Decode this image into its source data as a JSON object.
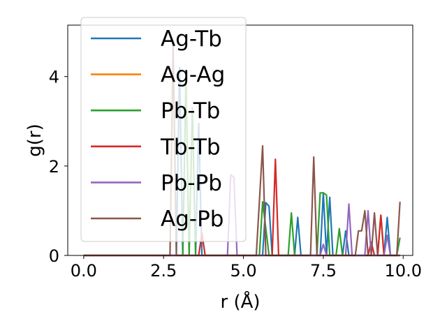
{
  "chart_data": {
    "type": "line",
    "title": "",
    "xlabel": "r (Å)",
    "ylabel": "g(r)",
    "xlim": [
      -0.5,
      10.3
    ],
    "ylim": [
      0,
      5.15
    ],
    "xticks": [
      "0.0",
      "2.5",
      "5.0",
      "7.5",
      "10.0"
    ],
    "xtick_values": [
      0,
      2.5,
      5,
      7.5,
      10
    ],
    "yticks": [
      "0",
      "2",
      "4"
    ],
    "ytick_values": [
      0,
      2,
      4
    ],
    "legend_position": "top-left",
    "grid": false,
    "series": [
      {
        "name": "Ag-Tb",
        "color": "#1f77b4",
        "points": [
          [
            0,
            0
          ],
          [
            2.9,
            0
          ],
          [
            3.0,
            4.2
          ],
          [
            3.1,
            0
          ],
          [
            3.5,
            0
          ],
          [
            3.6,
            2.95
          ],
          [
            3.7,
            0
          ],
          [
            5.6,
            0
          ],
          [
            5.7,
            1.18
          ],
          [
            5.8,
            1.1
          ],
          [
            5.9,
            0
          ],
          [
            6.6,
            0
          ],
          [
            6.7,
            0.85
          ],
          [
            6.8,
            0
          ],
          [
            7.4,
            0
          ],
          [
            7.5,
            1.4
          ],
          [
            7.6,
            0
          ],
          [
            7.7,
            1.3
          ],
          [
            7.8,
            0
          ],
          [
            8.1,
            0
          ],
          [
            8.2,
            0.55
          ],
          [
            8.3,
            0
          ],
          [
            9.4,
            0
          ],
          [
            9.5,
            0.85
          ],
          [
            9.6,
            0
          ],
          [
            9.9,
            0
          ]
        ]
      },
      {
        "name": "Ag-Ag",
        "color": "#ff7f0e",
        "points": [
          [
            0,
            0
          ],
          [
            9.9,
            0
          ]
        ]
      },
      {
        "name": "Pb-Tb",
        "color": "#2ca02c",
        "points": [
          [
            0,
            0
          ],
          [
            3.1,
            0
          ],
          [
            3.2,
            4.0
          ],
          [
            3.3,
            0
          ],
          [
            3.4,
            3.3
          ],
          [
            3.5,
            0
          ],
          [
            5.5,
            0
          ],
          [
            5.6,
            1.2
          ],
          [
            5.8,
            0
          ],
          [
            6.4,
            0
          ],
          [
            6.5,
            0.95
          ],
          [
            6.6,
            0
          ],
          [
            7.3,
            0
          ],
          [
            7.4,
            1.4
          ],
          [
            7.5,
            1.4
          ],
          [
            7.6,
            1.35
          ],
          [
            7.7,
            0
          ],
          [
            7.9,
            0
          ],
          [
            8.0,
            0.6
          ],
          [
            8.1,
            0
          ],
          [
            9.2,
            0
          ],
          [
            9.3,
            0.9
          ],
          [
            9.4,
            0
          ],
          [
            9.8,
            0
          ],
          [
            9.9,
            0.4
          ]
        ]
      },
      {
        "name": "Tb-Tb",
        "color": "#d62728",
        "points": [
          [
            0,
            0
          ],
          [
            3.6,
            0
          ],
          [
            3.7,
            0.5
          ],
          [
            3.8,
            0
          ],
          [
            5.9,
            0
          ],
          [
            6.0,
            2.15
          ],
          [
            6.1,
            0
          ],
          [
            8.9,
            0
          ],
          [
            9.0,
            0.3
          ],
          [
            9.1,
            0
          ],
          [
            9.2,
            0
          ],
          [
            9.3,
            0.9
          ],
          [
            9.4,
            0
          ],
          [
            9.9,
            0
          ]
        ]
      },
      {
        "name": "Pb-Pb",
        "color": "#9467bd",
        "points": [
          [
            0,
            0
          ],
          [
            4.5,
            0
          ],
          [
            4.6,
            1.8
          ],
          [
            4.7,
            1.75
          ],
          [
            4.8,
            0
          ],
          [
            7.4,
            0
          ],
          [
            7.5,
            0.25
          ],
          [
            7.6,
            0
          ],
          [
            8.2,
            0
          ],
          [
            8.3,
            1.15
          ],
          [
            8.4,
            0
          ],
          [
            8.8,
            0
          ],
          [
            8.9,
            1.0
          ],
          [
            9.0,
            0
          ],
          [
            9.4,
            0
          ],
          [
            9.5,
            0.45
          ],
          [
            9.6,
            0
          ],
          [
            9.9,
            0
          ]
        ]
      },
      {
        "name": "Ag-Pb",
        "color": "#8c564b",
        "points": [
          [
            0,
            0
          ],
          [
            2.7,
            0
          ],
          [
            2.8,
            4.75
          ],
          [
            2.9,
            0
          ],
          [
            5.4,
            0
          ],
          [
            5.6,
            2.45
          ],
          [
            5.7,
            0
          ],
          [
            7.1,
            0
          ],
          [
            7.2,
            2.2
          ],
          [
            7.3,
            0
          ],
          [
            8.5,
            0
          ],
          [
            8.6,
            0.55
          ],
          [
            8.7,
            0.55
          ],
          [
            8.8,
            1.0
          ],
          [
            8.9,
            0
          ],
          [
            9.0,
            0
          ],
          [
            9.1,
            0.95
          ],
          [
            9.2,
            0
          ],
          [
            9.8,
            0
          ],
          [
            9.9,
            1.2
          ]
        ]
      }
    ]
  }
}
